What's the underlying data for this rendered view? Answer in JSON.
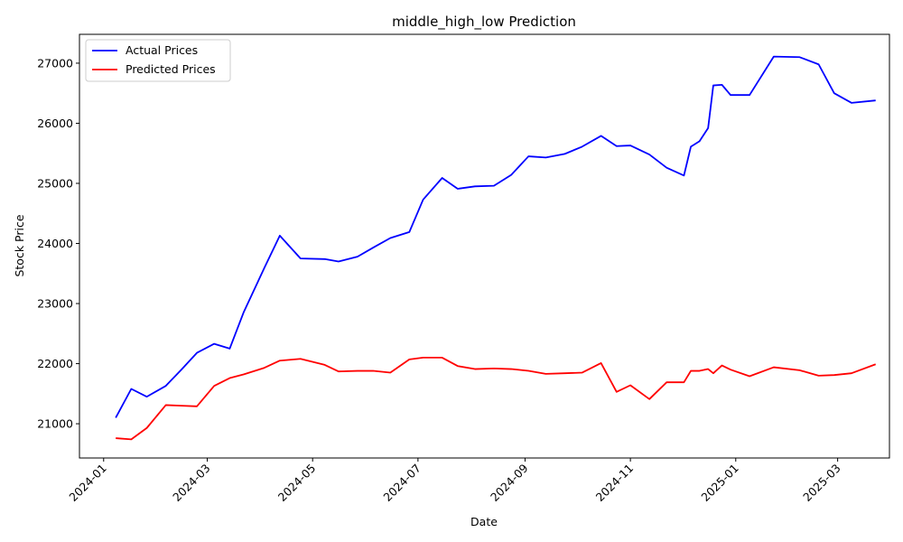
{
  "chart_data": {
    "type": "line",
    "title": "middle_high_low Prediction",
    "xlabel": "Date",
    "ylabel": "Stock Price",
    "x_ticks": [
      "2024-01",
      "2024-03",
      "2024-05",
      "2024-07",
      "2024-09",
      "2024-11",
      "2025-01",
      "2025-03"
    ],
    "y_ticks": [
      21000,
      22000,
      23000,
      24000,
      25000,
      26000,
      27000
    ],
    "xlim": [
      "2023-12-18",
      "2025-03-31"
    ],
    "ylim": [
      20430,
      27480
    ],
    "grid": false,
    "legend_position": "upper-left",
    "x": [
      "2024-01-08",
      "2024-01-17",
      "2024-01-26",
      "2024-02-06",
      "2024-02-15",
      "2024-02-24",
      "2024-03-05",
      "2024-03-14",
      "2024-03-22",
      "2024-04-03",
      "2024-04-12",
      "2024-04-24",
      "2024-05-08",
      "2024-05-16",
      "2024-05-27",
      "2024-06-05",
      "2024-06-15",
      "2024-06-26",
      "2024-07-04",
      "2024-07-15",
      "2024-07-24",
      "2024-08-03",
      "2024-08-14",
      "2024-08-24",
      "2024-09-03",
      "2024-09-13",
      "2024-09-24",
      "2024-10-04",
      "2024-10-15",
      "2024-10-24",
      "2024-11-01",
      "2024-11-12",
      "2024-11-22",
      "2024-12-02",
      "2024-12-06",
      "2024-12-11",
      "2024-12-16",
      "2024-12-19",
      "2024-12-24",
      "2024-12-29",
      "2025-01-09",
      "2025-01-23",
      "2025-02-07",
      "2025-02-18",
      "2025-02-27",
      "2025-03-09",
      "2025-03-23"
    ],
    "series": [
      {
        "name": "Actual Prices",
        "color": "#0000ff",
        "values": [
          21100,
          21580,
          21450,
          21630,
          21900,
          22180,
          22330,
          22250,
          22850,
          23590,
          24130,
          23750,
          23740,
          23700,
          23780,
          23930,
          24090,
          24190,
          24730,
          25090,
          24910,
          24950,
          24960,
          25140,
          25450,
          25430,
          25490,
          25610,
          25790,
          25620,
          25630,
          25480,
          25260,
          25130,
          25610,
          25700,
          25920,
          26630,
          26640,
          26470,
          26470,
          27110,
          27100,
          26980,
          26500,
          26340,
          26380
        ]
      },
      {
        "name": "Predicted Prices",
        "color": "#ff0000",
        "values": [
          20760,
          20740,
          20930,
          21310,
          21300,
          21290,
          21630,
          21760,
          21820,
          21930,
          22050,
          22080,
          21980,
          21870,
          21880,
          21880,
          21850,
          22070,
          22100,
          22100,
          21960,
          21910,
          21920,
          21910,
          21880,
          21830,
          21840,
          21850,
          22010,
          21530,
          21640,
          21410,
          21690,
          21690,
          21880,
          21880,
          21910,
          21840,
          21970,
          21900,
          21790,
          21940,
          21890,
          21800,
          21810,
          21840,
          21990
        ]
      }
    ]
  }
}
